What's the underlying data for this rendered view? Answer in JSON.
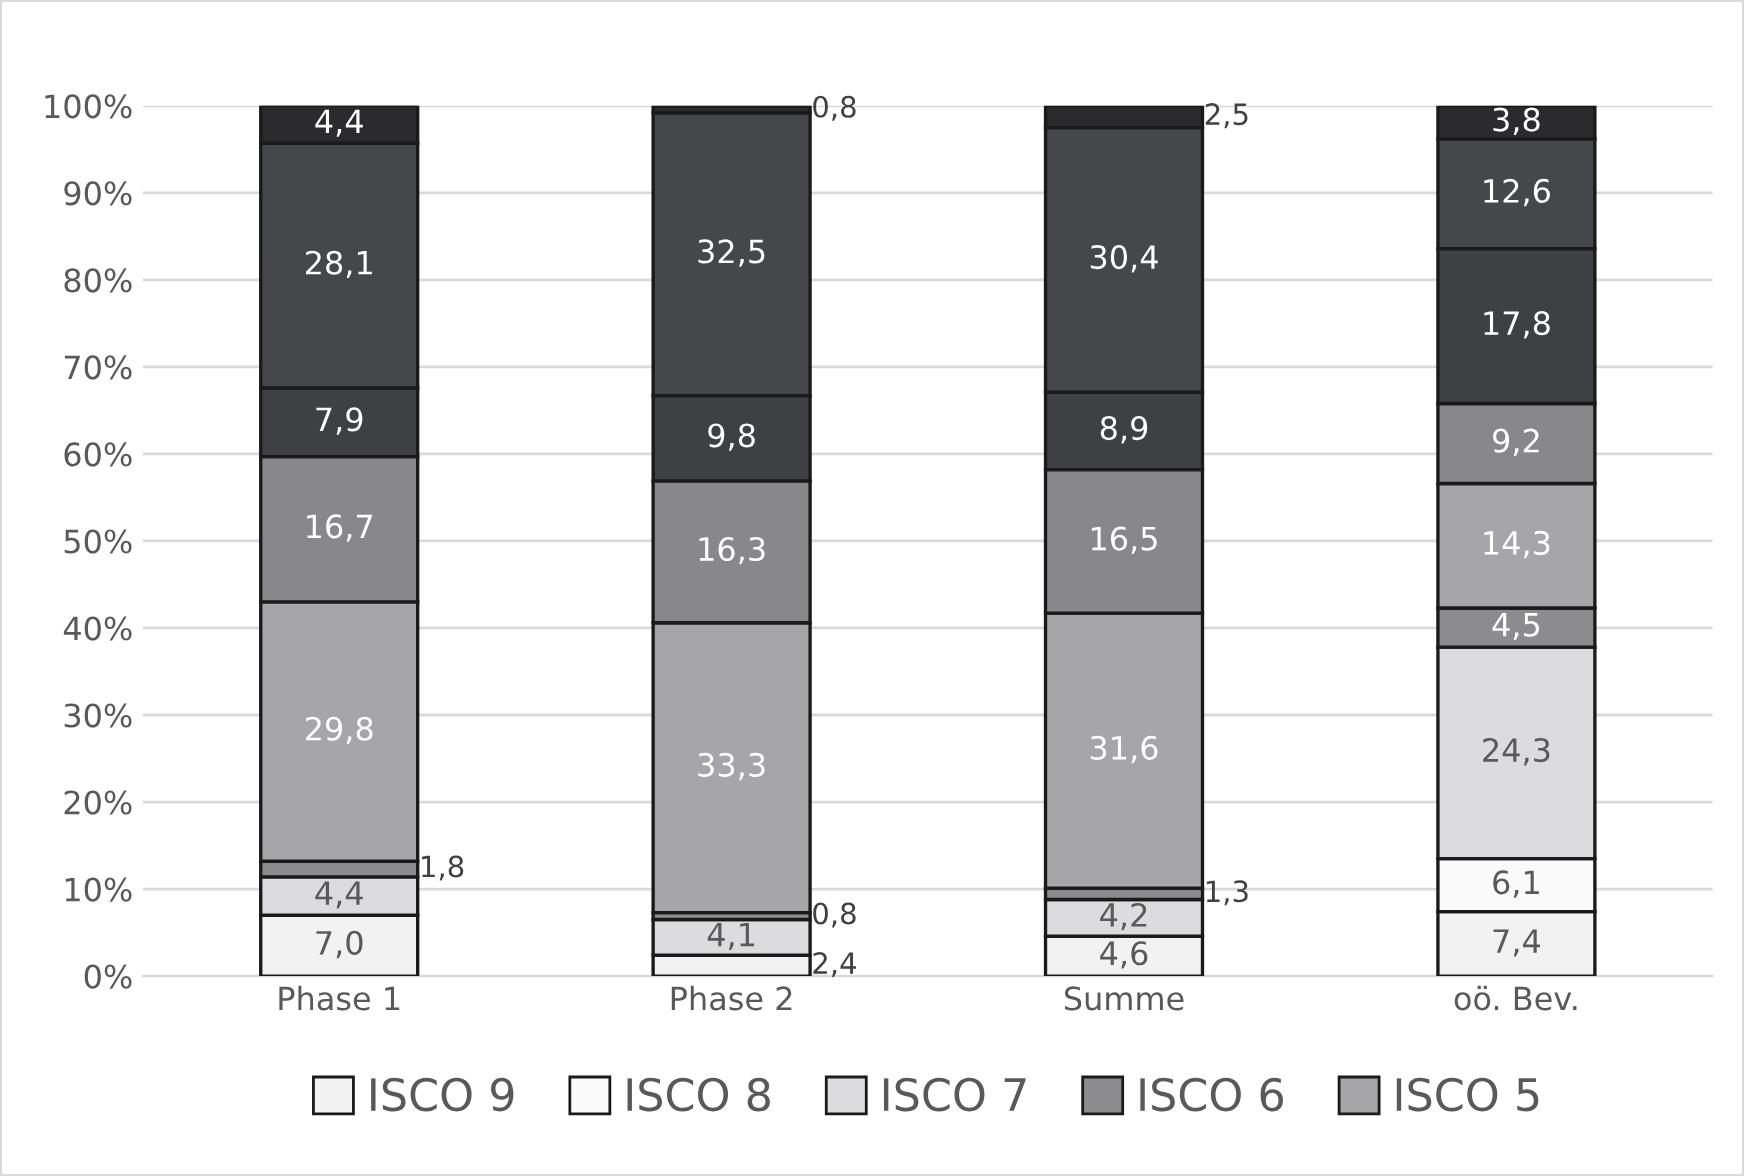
{
  "chart_data": {
    "type": "bar",
    "stacked": true,
    "categories": [
      "Phase 1",
      "Phase 2",
      "Summe",
      "oö. Bev."
    ],
    "ylim": [
      0,
      100
    ],
    "yticks": [
      {
        "value": 0,
        "label": "0%"
      },
      {
        "value": 10,
        "label": "10%"
      },
      {
        "value": 20,
        "label": "20%"
      },
      {
        "value": 30,
        "label": "30%"
      },
      {
        "value": 40,
        "label": "40%"
      },
      {
        "value": 50,
        "label": "50%"
      },
      {
        "value": 60,
        "label": "60%"
      },
      {
        "value": 70,
        "label": "70%"
      },
      {
        "value": 80,
        "label": "80%"
      },
      {
        "value": 90,
        "label": "90%"
      },
      {
        "value": 100,
        "label": "100%"
      }
    ],
    "grid": "y",
    "legend": "bottom",
    "series": [
      {
        "name": "ISCO 9",
        "color": "#f2f2f2",
        "values": [
          7.0,
          2.4,
          4.6,
          7.4
        ],
        "value_labels": [
          "7,0",
          "2,4",
          "4,6",
          "7,4"
        ]
      },
      {
        "name": "ISCO 8",
        "color": "#fafafa",
        "values": [
          null,
          null,
          null,
          6.1
        ],
        "value_labels": [
          null,
          null,
          null,
          "6,1"
        ]
      },
      {
        "name": "ISCO 7",
        "color": "#dcdcde",
        "values": [
          4.4,
          4.1,
          4.2,
          24.3
        ],
        "value_labels": [
          "4,4",
          "4,1",
          "4,2",
          "24,3"
        ]
      },
      {
        "name": "ISCO 6",
        "color": "#8c8c8e",
        "values": [
          1.8,
          0.8,
          1.3,
          4.5
        ],
        "value_labels": [
          "1,8",
          "0,8",
          "1,3",
          "4,5"
        ]
      },
      {
        "name": "ISCO 5",
        "color": "#a6a6a8",
        "values": [
          29.8,
          33.3,
          31.6,
          14.3
        ],
        "value_labels": [
          "29,8",
          "33,3",
          "31,6",
          "14,3"
        ]
      },
      {
        "color": "#88888b",
        "values": [
          16.7,
          16.3,
          16.5,
          9.2
        ],
        "value_labels": [
          "16,7",
          "16,3",
          "16,5",
          "9,2"
        ]
      },
      {
        "color": "#3f4044",
        "values": [
          7.9,
          9.8,
          8.9,
          17.8
        ],
        "value_labels": [
          "7,9",
          "9,8",
          "8,9",
          "17,8"
        ]
      },
      {
        "color": "#46474b",
        "values": [
          28.1,
          32.5,
          30.4,
          12.6
        ],
        "value_labels": [
          "28,1",
          "32,5",
          "30,4",
          "12,6"
        ]
      },
      {
        "color": "#2b2b2d",
        "values": [
          4.4,
          0.8,
          2.5,
          3.8
        ],
        "value_labels": [
          "4,4",
          "0,8",
          "2,5",
          "3,8"
        ]
      }
    ]
  }
}
